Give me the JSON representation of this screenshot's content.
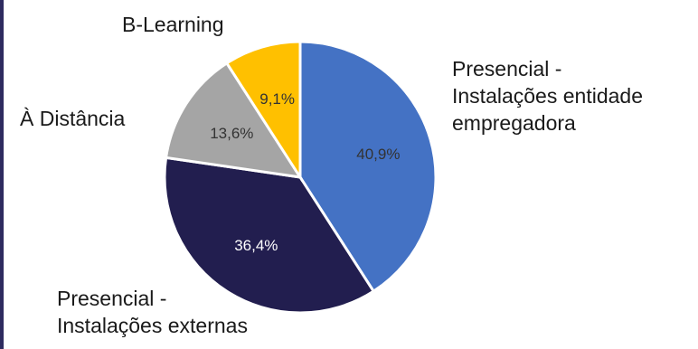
{
  "chart_data": {
    "type": "pie",
    "slices": [
      {
        "label_lines": [
          "Presencial -",
          "Instalações entidade",
          "empregadora"
        ],
        "value": 40.9,
        "display": "40,9%",
        "color": "#4472c4",
        "label_color": "#333333"
      },
      {
        "label_lines": [
          "Presencial -",
          "Instalações externas"
        ],
        "value": 36.4,
        "display": "36,4%",
        "color": "#221e4f",
        "label_color": "#ffffff"
      },
      {
        "label_lines": [
          "À Distância"
        ],
        "value": 13.6,
        "display": "13,6%",
        "color": "#a5a5a5",
        "label_color": "#333333"
      },
      {
        "label_lines": [
          "B-Learning"
        ],
        "value": 9.1,
        "display": "9,1%",
        "color": "#ffc000",
        "label_color": "#333333"
      }
    ]
  }
}
